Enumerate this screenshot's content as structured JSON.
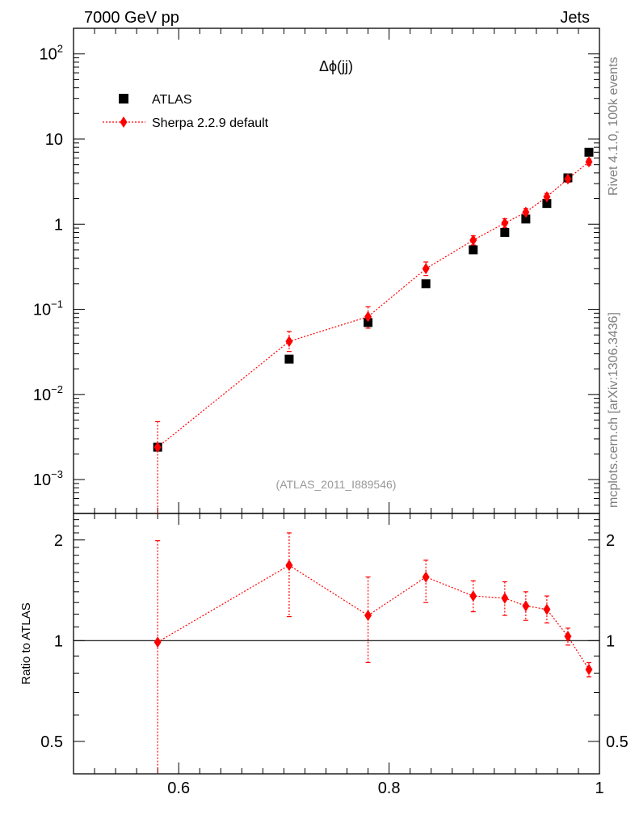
{
  "header": {
    "left": "7000 GeV pp",
    "right": "Jets"
  },
  "side": {
    "top": "Rivet 4.1.0,  100k events",
    "bottom": "mcplots.cern.ch [arXiv:1306.3436]"
  },
  "analysis_label": "(ATLAS_2011_I889546)",
  "colors": {
    "data": "#000000",
    "mc": "#ff0000",
    "side_text": "#808080"
  },
  "chart_data": [
    {
      "type": "scatter",
      "title": "Δϕ(jj)",
      "xlabel": "",
      "ylabel": "",
      "yscale": "log",
      "xlim": [
        0.5,
        1.0
      ],
      "ylim": [
        0.0004,
        200
      ],
      "y_ticks": [
        {
          "value": 0.001,
          "base": "10",
          "exp": "−3"
        },
        {
          "value": 0.01,
          "base": "10",
          "exp": "−2"
        },
        {
          "value": 0.1,
          "base": "10",
          "exp": "−1"
        },
        {
          "value": 1,
          "base": "1",
          "exp": ""
        },
        {
          "value": 10,
          "base": "10",
          "exp": ""
        },
        {
          "value": 100,
          "base": "10",
          "exp": "2"
        }
      ],
      "legend": {
        "position": "top-left",
        "entries": [
          "ATLAS",
          "Sherpa 2.2.9 default"
        ]
      },
      "series": [
        {
          "name": "ATLAS",
          "marker": "square",
          "x": [
            0.58,
            0.705,
            0.78,
            0.835,
            0.88,
            0.91,
            0.93,
            0.95,
            0.97,
            0.99
          ],
          "y": [
            0.0024,
            0.026,
            0.07,
            0.2,
            0.5,
            0.8,
            1.15,
            1.75,
            3.5,
            7.0
          ]
        },
        {
          "name": "Sherpa 2.2.9 default",
          "marker": "diamond",
          "line": "dotted",
          "x": [
            0.58,
            0.705,
            0.78,
            0.835,
            0.88,
            0.91,
            0.93,
            0.95,
            0.97,
            0.99
          ],
          "y": [
            0.0024,
            0.042,
            0.082,
            0.3,
            0.65,
            1.03,
            1.38,
            2.1,
            3.4,
            5.4
          ],
          "err_low": [
            0.0024,
            0.01,
            0.022,
            0.05,
            0.08,
            0.12,
            0.14,
            0.19,
            0.3,
            0.45
          ],
          "err_high": [
            0.0024,
            0.013,
            0.025,
            0.06,
            0.08,
            0.13,
            0.15,
            0.2,
            0.3,
            0.45
          ]
        }
      ]
    },
    {
      "type": "scatter",
      "title": "",
      "xlabel": "",
      "ylabel": "Ratio to ATLAS",
      "yscale": "log",
      "xlim": [
        0.5,
        1.0
      ],
      "ylim": [
        0.4,
        2.4
      ],
      "x_ticks": [
        "0.6",
        "0.8",
        "1"
      ],
      "y_ticks": [
        {
          "value": 0.5,
          "label": "0.5"
        },
        {
          "value": 1,
          "label": "1"
        },
        {
          "value": 2,
          "label": "2"
        }
      ],
      "reference_line": 1,
      "series": [
        {
          "name": "Sherpa 2.2.9 default / ATLAS",
          "marker": "diamond",
          "line": "dotted",
          "x": [
            0.58,
            0.705,
            0.78,
            0.835,
            0.88,
            0.91,
            0.93,
            0.95,
            0.97,
            0.99
          ],
          "y": [
            0.99,
            1.68,
            1.19,
            1.55,
            1.36,
            1.34,
            1.27,
            1.24,
            1.03,
            0.82
          ],
          "err_low": [
            0.6,
            0.5,
            0.33,
            0.25,
            0.14,
            0.15,
            0.12,
            0.11,
            0.06,
            0.04
          ],
          "err_high": [
            1.0,
            0.42,
            0.36,
            0.19,
            0.15,
            0.16,
            0.13,
            0.12,
            0.06,
            0.04
          ]
        }
      ]
    }
  ]
}
